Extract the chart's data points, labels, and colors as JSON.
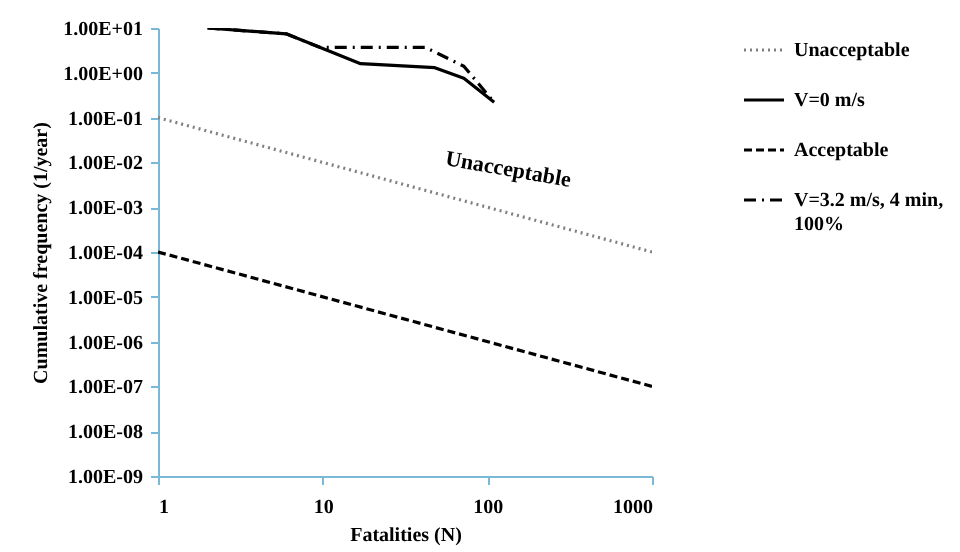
{
  "chart_data": {
    "type": "line",
    "xlabel": "Fatalities (N)",
    "ylabel": "Cumulative frequency (1/year)",
    "log": "xy",
    "grid": false,
    "legend": "right",
    "xlim": [
      1,
      1000
    ],
    "xticks": [
      1,
      10,
      100,
      1000
    ],
    "ylim": [
      1e-09,
      10
    ],
    "yticks": [
      {
        "value": 10,
        "label": "1.00E+01"
      },
      {
        "value": 1,
        "label": "1.00E+00"
      },
      {
        "value": 0.1,
        "label": "1.00E-01"
      },
      {
        "value": 0.01,
        "label": "1.00E-02"
      },
      {
        "value": 0.001,
        "label": "1.00E-03"
      },
      {
        "value": 0.0001,
        "label": "1.00E-04"
      },
      {
        "value": 1e-05,
        "label": "1.00E-05"
      },
      {
        "value": 1e-06,
        "label": "1.00E-06"
      },
      {
        "value": 1e-07,
        "label": "1.00E-07"
      },
      {
        "value": 1e-08,
        "label": "1.00E-08"
      },
      {
        "value": 1e-09,
        "label": "1.00E-09"
      }
    ],
    "annotations": [
      "Unacceptable"
    ],
    "series": [
      {
        "name": "Unacceptable",
        "color": "#808080",
        "line_style": "dotted",
        "x": [
          1,
          1000
        ],
        "values": [
          0.1,
          0.0001
        ]
      },
      {
        "name": "V=0 m/s",
        "color": "#000000",
        "line_style": "solid",
        "x": [
          2,
          6,
          17,
          48,
          72,
          110
        ],
        "values": [
          10,
          7.4,
          1.6,
          1.3,
          0.76,
          0.22
        ]
      },
      {
        "name": "Acceptable",
        "color": "#000000",
        "line_style": "dashed",
        "x": [
          1,
          1000
        ],
        "values": [
          0.0001,
          1e-07
        ]
      },
      {
        "name": "V=3.2 m/s, 4 min, 100%",
        "color": "#000000",
        "line_style": "dashdot",
        "x": [
          2,
          6,
          9.6,
          42,
          72,
          110
        ],
        "values": [
          10,
          7.4,
          3.7,
          3.7,
          1.4,
          0.22
        ]
      }
    ]
  }
}
